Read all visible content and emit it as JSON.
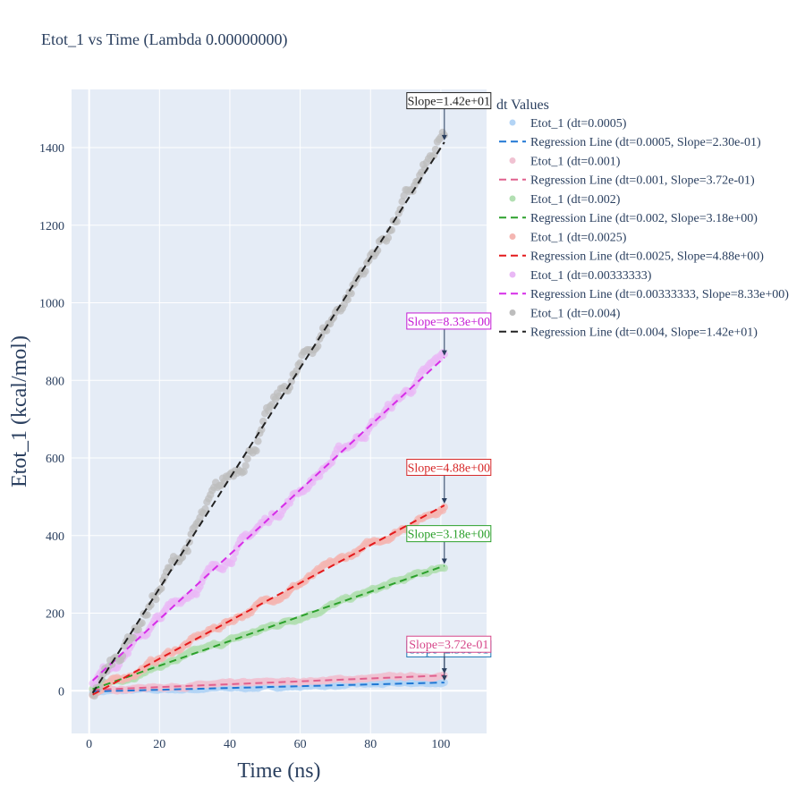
{
  "chart_data": {
    "type": "scatter",
    "title": "Etot_1 vs Time (Lambda 0.00000000)",
    "xlabel": "Time (ns)",
    "ylabel": "Etot_1 (kcal/mol)",
    "xlim": [
      -5,
      113
    ],
    "ylim": [
      -110,
      1550
    ],
    "xticks": [
      0,
      20,
      40,
      60,
      80,
      100
    ],
    "yticks": [
      0,
      200,
      400,
      600,
      800,
      1000,
      1200,
      1400
    ],
    "grid": true,
    "legend_title": "dt Values",
    "legend_position": "right",
    "series": [
      {
        "dt": "0.0005",
        "marker_name": "Etot_1 (dt=0.0005)",
        "line_name": "Regression Line (dt=0.0005, Slope=2.30e-01)",
        "annotation": "Slope=2.30e-01",
        "slope": 0.23,
        "intercept": -2,
        "x_start": 1,
        "x_end": 101,
        "marker_color": "#b3d4f5",
        "line_color": "#1f77d4",
        "ann_color": "#1f77b4",
        "ann_y": 108
      },
      {
        "dt": "0.001",
        "marker_name": "Etot_1 (dt=0.001)",
        "line_name": "Regression Line (dt=0.001, Slope=3.72e-01)",
        "annotation": "Slope=3.72e-01",
        "slope": 0.372,
        "intercept": 2,
        "x_start": 1,
        "x_end": 101,
        "marker_color": "#f0c2d2",
        "line_color": "#e0608e",
        "ann_color": "#d6478a",
        "ann_y": 120
      },
      {
        "dt": "0.002",
        "marker_name": "Etot_1 (dt=0.002)",
        "line_name": "Regression Line (dt=0.002, Slope=3.18e+00)",
        "annotation": "Slope=3.18e+00",
        "slope": 3.18,
        "intercept": 1,
        "x_start": 1,
        "x_end": 101,
        "marker_color": "#b2dfb2",
        "line_color": "#2ca02c",
        "ann_color": "#2ca02c",
        "ann_y": 405
      },
      {
        "dt": "0.0025",
        "marker_name": "Etot_1 (dt=0.0025)",
        "line_name": "Regression Line (dt=0.0025, Slope=4.88e+00)",
        "annotation": "Slope=4.88e+00",
        "slope": 4.88,
        "intercept": -15,
        "x_start": 1,
        "x_end": 101,
        "marker_color": "#f4b6b2",
        "line_color": "#e31a1c",
        "ann_color": "#d62728",
        "ann_y": 576
      },
      {
        "dt": "0.00333333",
        "marker_name": "Etot_1 (dt=0.00333333)",
        "line_name": "Regression Line (dt=0.00333333, Slope=8.33e+00)",
        "annotation": "Slope=8.33e+00",
        "slope": 8.33,
        "intercept": 18,
        "x_start": 1,
        "x_end": 101,
        "marker_color": "#e9b8f5",
        "line_color": "#d62de8",
        "ann_color": "#c51bd5",
        "ann_y": 953
      },
      {
        "dt": "0.004",
        "marker_name": "Etot_1 (dt=0.004)",
        "line_name": "Regression Line (dt=0.004, Slope=1.42e+01)",
        "annotation": "Slope=1.42e+01",
        "slope": 14.2,
        "intercept": -20,
        "x_start": 1,
        "x_end": 101,
        "marker_color": "#bdbdbd",
        "line_color": "#222222",
        "ann_color": "#222222",
        "ann_y": 1521
      }
    ]
  }
}
